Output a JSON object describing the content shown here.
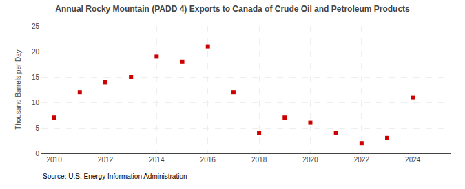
{
  "chart_data": {
    "type": "scatter",
    "title": "Annual Rocky Mountain (PADD 4) Exports to Canada of Crude Oil and Petroleum Products",
    "ylabel": "Thousand Barrels per Day",
    "annotations": [
      "Source: U.S. Energy Information Administration"
    ],
    "x": [
      2010,
      2011,
      2012,
      2013,
      2014,
      2015,
      2016,
      2017,
      2018,
      2019,
      2020,
      2021,
      2022,
      2023,
      2024
    ],
    "values": [
      7,
      12,
      14,
      15,
      19,
      18,
      21,
      12,
      4,
      7,
      6,
      4,
      2,
      3,
      11
    ],
    "color": "#cc0000",
    "marker": "square",
    "xlim": [
      2009.5,
      2025.5
    ],
    "ylim": [
      0,
      25
    ],
    "xticks": [
      2010,
      2012,
      2014,
      2016,
      2018,
      2020,
      2022,
      2024
    ],
    "yticks": [
      0,
      5,
      10,
      15,
      20,
      25
    ],
    "grid": true
  }
}
